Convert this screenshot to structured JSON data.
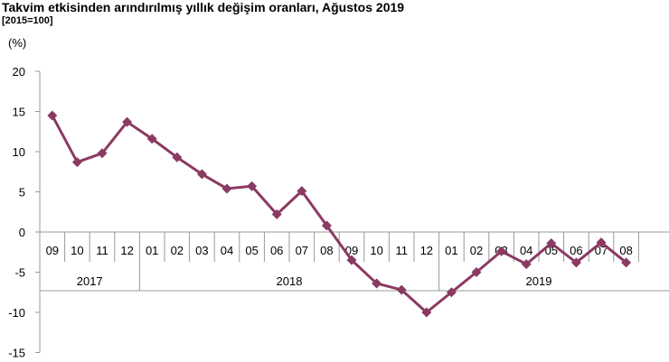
{
  "chart_data": {
    "type": "line",
    "title": "Takvim etkisinden arındırılmış yıllık değişim oranları, Ağustos 2019",
    "subtitle": "[2015=100]",
    "ylabel": "(%)",
    "ylim": [
      -15,
      20
    ],
    "yticks": [
      20,
      15,
      10,
      5,
      0,
      -5,
      -10,
      -15
    ],
    "categories": [
      "09",
      "10",
      "11",
      "12",
      "01",
      "02",
      "03",
      "04",
      "05",
      "06",
      "07",
      "08",
      "09",
      "10",
      "11",
      "12",
      "01",
      "02",
      "03",
      "04",
      "05",
      "06",
      "07",
      "08"
    ],
    "year_groups": [
      {
        "label": "2017",
        "count": 4
      },
      {
        "label": "2018",
        "count": 12
      },
      {
        "label": "2019",
        "count": 8
      }
    ],
    "series": [
      {
        "values": [
          14.5,
          8.7,
          9.8,
          13.7,
          11.6,
          9.3,
          7.2,
          5.4,
          5.7,
          2.2,
          5.1,
          0.8,
          -3.5,
          -6.4,
          -7.2,
          -10.0,
          -7.5,
          -5.0,
          -2.4,
          -4.0,
          -1.4,
          -3.8,
          -1.3,
          -3.8
        ],
        "color": "#8B3A62"
      }
    ],
    "grid": false,
    "legend": "none"
  }
}
